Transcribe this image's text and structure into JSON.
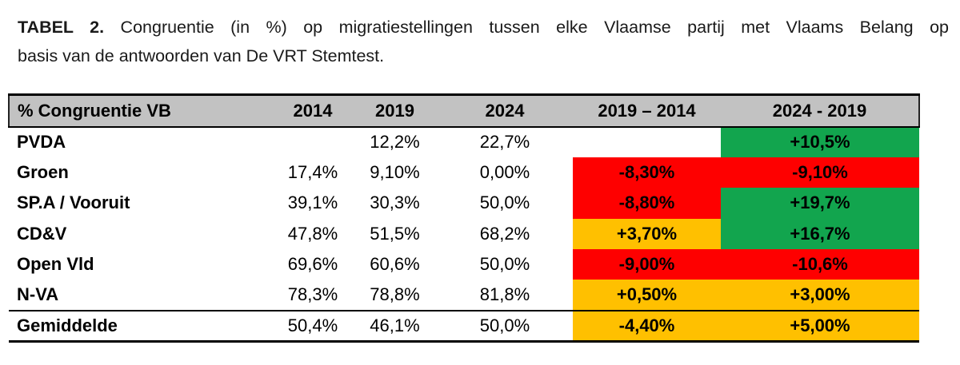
{
  "caption": {
    "label": "TABEL 2.",
    "line1": "Congruentie (in %) op migratiestellingen tussen elke Vlaamse partij met Vlaams Belang op",
    "line2": "basis van de antwoorden van De VRT Stemtest."
  },
  "table": {
    "columns": [
      "% Congruentie VB",
      "2014",
      "2019",
      "2024",
      "2019 – 2014",
      "2024 - 2019"
    ],
    "rows": [
      {
        "party": "PVDA",
        "v2014": "",
        "v2019": "12,2%",
        "v2024": "22,7%",
        "d1": "",
        "d1_color": "none",
        "d2": "+10,5%",
        "d2_color": "green"
      },
      {
        "party": "Groen",
        "v2014": "17,4%",
        "v2019": "9,10%",
        "v2024": "0,00%",
        "d1": "-8,30%",
        "d1_color": "red",
        "d2": "-9,10%",
        "d2_color": "red"
      },
      {
        "party": "SP.A / Vooruit",
        "v2014": "39,1%",
        "v2019": "30,3%",
        "v2024": "50,0%",
        "d1": "-8,80%",
        "d1_color": "red",
        "d2": "+19,7%",
        "d2_color": "green"
      },
      {
        "party": "CD&V",
        "v2014": "47,8%",
        "v2019": "51,5%",
        "v2024": "68,2%",
        "d1": "+3,70%",
        "d1_color": "gold",
        "d2": "+16,7%",
        "d2_color": "green"
      },
      {
        "party": "Open Vld",
        "v2014": "69,6%",
        "v2019": "60,6%",
        "v2024": "50,0%",
        "d1": "-9,00%",
        "d1_color": "red",
        "d2": "-10,6%",
        "d2_color": "red"
      },
      {
        "party": "N-VA",
        "v2014": "78,3%",
        "v2019": "78,8%",
        "v2024": "81,8%",
        "d1": "+0,50%",
        "d1_color": "gold",
        "d2": "+3,00%",
        "d2_color": "gold"
      },
      {
        "party": "Gemiddelde",
        "v2014": "50,4%",
        "v2019": "46,1%",
        "v2024": "50,0%",
        "d1": "-4,40%",
        "d1_color": "gold",
        "d2": "+5,00%",
        "d2_color": "gold"
      }
    ],
    "colors": {
      "header_bg": "#C2C2C2",
      "positive_green": "#12A54E",
      "negative_red": "#FE0000",
      "neutral_gold": "#FFC000",
      "border_black": "#000000"
    }
  }
}
